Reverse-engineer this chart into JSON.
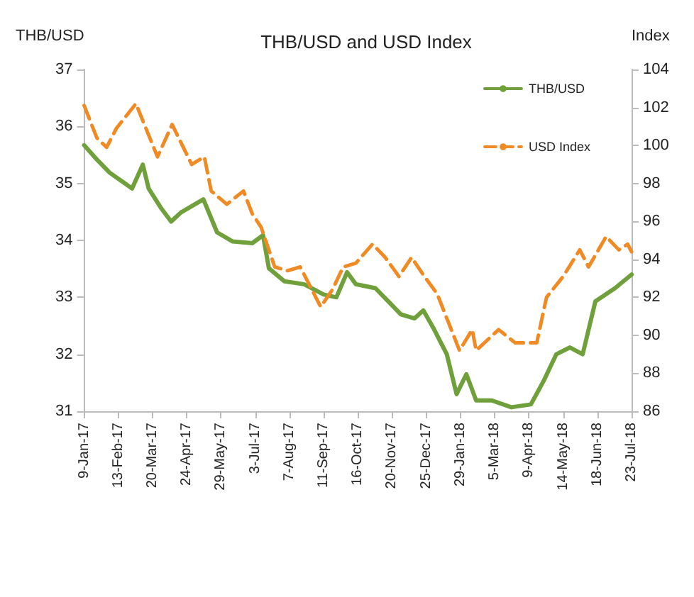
{
  "chart_data": {
    "type": "line",
    "title": "THB/USD and USD Index",
    "ylabel": "THB/USD",
    "y2label": "Index",
    "xlim": [
      "2017-01-09",
      "2018-07-23"
    ],
    "xticks": [
      {
        "value": "2017-01-09",
        "label": "9-Jan-17"
      },
      {
        "value": "2017-02-13",
        "label": "13-Feb-17"
      },
      {
        "value": "2017-03-20",
        "label": "20-Mar-17"
      },
      {
        "value": "2017-04-24",
        "label": "24-Apr-17"
      },
      {
        "value": "2017-05-29",
        "label": "29-May-17"
      },
      {
        "value": "2017-07-03",
        "label": "3-Jul-17"
      },
      {
        "value": "2017-08-07",
        "label": "7-Aug-17"
      },
      {
        "value": "2017-09-11",
        "label": "11-Sep-17"
      },
      {
        "value": "2017-10-16",
        "label": "16-Oct-17"
      },
      {
        "value": "2017-11-20",
        "label": "20-Nov-17"
      },
      {
        "value": "2017-12-25",
        "label": "25-Dec-17"
      },
      {
        "value": "2018-01-29",
        "label": "29-Jan-18"
      },
      {
        "value": "2018-03-05",
        "label": "5-Mar-18"
      },
      {
        "value": "2018-04-09",
        "label": "9-Apr-18"
      },
      {
        "value": "2018-05-14",
        "label": "14-May-18"
      },
      {
        "value": "2018-06-18",
        "label": "18-Jun-18"
      },
      {
        "value": "2018-07-23",
        "label": "23-Jul-18"
      }
    ],
    "ylim": [
      31,
      37
    ],
    "yticks": [
      31,
      32,
      33,
      34,
      35,
      36,
      37
    ],
    "y2lim": [
      86,
      104
    ],
    "y2ticks": [
      86,
      88,
      90,
      92,
      94,
      96,
      98,
      100,
      102,
      104
    ],
    "grid": false,
    "legend": "top right",
    "marker": "none",
    "series": [
      {
        "name": "THB/USD",
        "color": "#70a03c",
        "line_style": "solid",
        "x": [
          "2017-01-09",
          "2017-01-22",
          "2017-02-04",
          "2017-02-18",
          "2017-02-27",
          "2017-03-10",
          "2017-03-16",
          "2017-03-29",
          "2017-04-08",
          "2017-04-18",
          "2017-05-02",
          "2017-05-11",
          "2017-05-25",
          "2017-06-10",
          "2017-06-30",
          "2017-07-11",
          "2017-07-17",
          "2017-08-02",
          "2017-08-22",
          "2017-09-11",
          "2017-09-24",
          "2017-10-05",
          "2017-10-14",
          "2017-11-03",
          "2017-11-16",
          "2017-11-29",
          "2017-12-13",
          "2017-12-22",
          "2018-01-01",
          "2018-01-15",
          "2018-01-25",
          "2018-02-04",
          "2018-02-14",
          "2018-03-02",
          "2018-03-22",
          "2018-04-11",
          "2018-04-24",
          "2018-05-07",
          "2018-05-21",
          "2018-06-03",
          "2018-06-16",
          "2018-07-06",
          "2018-07-23"
        ],
        "values": [
          35.67,
          35.42,
          35.19,
          35.02,
          34.91,
          35.33,
          34.91,
          34.56,
          34.33,
          34.49,
          34.63,
          34.72,
          34.14,
          33.98,
          33.95,
          34.09,
          33.51,
          33.28,
          33.23,
          33.05,
          33.0,
          33.44,
          33.23,
          33.16,
          32.93,
          32.7,
          32.63,
          32.77,
          32.47,
          32.0,
          31.3,
          31.65,
          31.19,
          31.19,
          31.07,
          31.12,
          31.53,
          32.0,
          32.12,
          32.0,
          32.93,
          33.16,
          33.4
        ]
      },
      {
        "name": "USD Index",
        "color": "#f08a24",
        "line_style": "dashed",
        "axis": "y2",
        "x": [
          "2017-01-09",
          "2017-01-22",
          "2017-02-01",
          "2017-02-11",
          "2017-03-03",
          "2017-03-25",
          "2017-04-09",
          "2017-04-29",
          "2017-05-12",
          "2017-05-19",
          "2017-06-04",
          "2017-06-21",
          "2017-06-30",
          "2017-07-09",
          "2017-07-23",
          "2017-08-05",
          "2017-08-18",
          "2017-09-08",
          "2017-09-20",
          "2017-10-01",
          "2017-10-14",
          "2017-10-31",
          "2017-11-13",
          "2017-11-27",
          "2017-12-10",
          "2017-12-23",
          "2018-01-05",
          "2018-01-28",
          "2018-02-10",
          "2018-02-14",
          "2018-03-09",
          "2018-03-26",
          "2018-04-17",
          "2018-04-27",
          "2018-05-14",
          "2018-05-31",
          "2018-06-09",
          "2018-06-27",
          "2018-07-10",
          "2018-07-19",
          "2018-07-23"
        ],
        "values": [
          102.1,
          100.4,
          99.9,
          100.9,
          102.2,
          99.4,
          101.1,
          99.0,
          99.4,
          97.6,
          96.9,
          97.6,
          96.4,
          95.7,
          93.6,
          93.4,
          93.6,
          91.5,
          92.4,
          93.6,
          93.8,
          94.8,
          94.1,
          93.1,
          94.1,
          93.1,
          92.2,
          89.2,
          90.3,
          89.2,
          90.3,
          89.6,
          89.6,
          92.0,
          93.1,
          94.5,
          93.6,
          95.2,
          94.5,
          94.8,
          94.4
        ]
      }
    ]
  }
}
